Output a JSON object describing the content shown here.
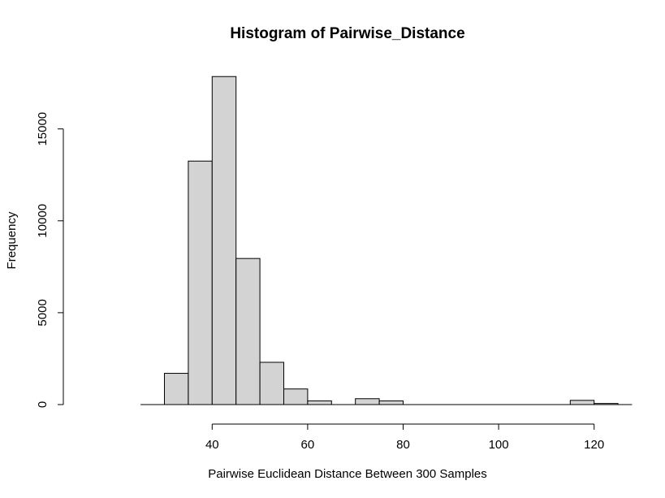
{
  "chart_data": {
    "type": "bar",
    "title": "Histogram of Pairwise_Distance",
    "xlabel": "Pairwise Euclidean Distance Between 300 Samples",
    "ylabel": "Frequency",
    "bins": [
      {
        "x0": 30,
        "x1": 35,
        "count": 1700
      },
      {
        "x0": 35,
        "x1": 40,
        "count": 13250
      },
      {
        "x0": 40,
        "x1": 45,
        "count": 17850
      },
      {
        "x0": 45,
        "x1": 50,
        "count": 7950
      },
      {
        "x0": 50,
        "x1": 55,
        "count": 2300
      },
      {
        "x0": 55,
        "x1": 60,
        "count": 850
      },
      {
        "x0": 60,
        "x1": 65,
        "count": 200
      },
      {
        "x0": 65,
        "x1": 70,
        "count": 0
      },
      {
        "x0": 70,
        "x1": 75,
        "count": 320
      },
      {
        "x0": 75,
        "x1": 80,
        "count": 200
      },
      {
        "x0": 80,
        "x1": 85,
        "count": 0
      },
      {
        "x0": 85,
        "x1": 90,
        "count": 0
      },
      {
        "x0": 90,
        "x1": 95,
        "count": 0
      },
      {
        "x0": 95,
        "x1": 100,
        "count": 0
      },
      {
        "x0": 100,
        "x1": 105,
        "count": 0
      },
      {
        "x0": 105,
        "x1": 110,
        "count": 0
      },
      {
        "x0": 110,
        "x1": 115,
        "count": 0
      },
      {
        "x0": 115,
        "x1": 120,
        "count": 230
      },
      {
        "x0": 120,
        "x1": 125,
        "count": 60
      },
      {
        "x0": 125,
        "x1": 130,
        "count": 0
      },
      {
        "x0": 130,
        "x1": 135,
        "count": 0
      }
    ],
    "xlim": [
      25,
      135
    ],
    "ylim": [
      0,
      17850
    ],
    "x_ticks": [
      40,
      60,
      80,
      100,
      120
    ],
    "y_ticks": [
      0,
      5000,
      10000,
      15000
    ],
    "grid": false,
    "legend": "none"
  }
}
